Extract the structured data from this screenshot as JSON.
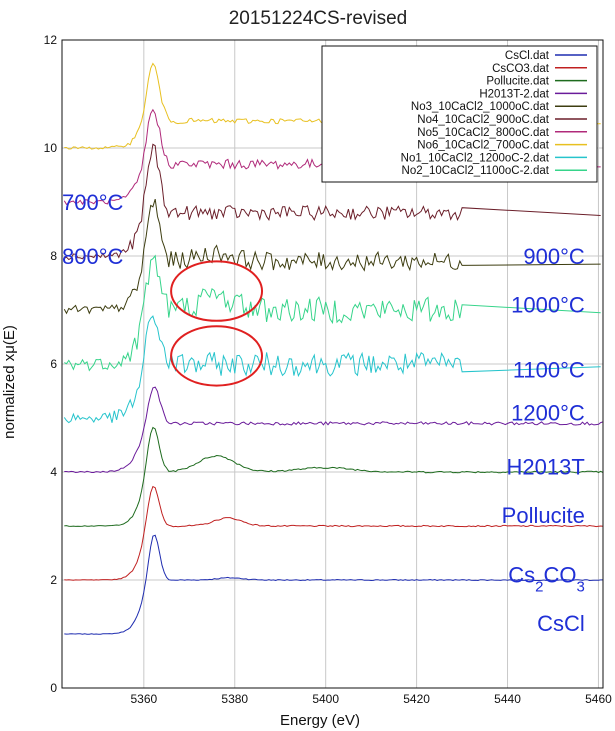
{
  "chart_data": {
    "type": "line",
    "title": "20151224CS-revised",
    "xlabel": "Energy (eV)",
    "ylabel": "normalized xμ(E)",
    "xlim": [
      5342,
      5461
    ],
    "ylim": [
      0,
      12
    ],
    "xticks": [
      5360,
      5380,
      5400,
      5420,
      5440,
      5460
    ],
    "yticks": [
      0,
      2,
      4,
      6,
      8,
      10,
      12
    ],
    "grid": true,
    "legend_position": "top-right",
    "series": [
      {
        "name": "CsCl.dat",
        "color": "#1f2db0",
        "offset": 1.0,
        "shape": "cscl",
        "noise": 0.01,
        "x_end": 5461
      },
      {
        "name": "CsCO3.dat",
        "color": "#c02020",
        "offset": 2.0,
        "shape": "csco3",
        "noise": 0.012,
        "x_end": 5461
      },
      {
        "name": "Pollucite.dat",
        "color": "#1e6b1e",
        "offset": 3.0,
        "shape": "pollucite",
        "noise": 0.015,
        "x_end": 5461
      },
      {
        "name": "H2013T-2.dat",
        "color": "#6a1b9a",
        "offset": 4.0,
        "shape": "h2013",
        "noise": 0.03,
        "x_end": 5461
      },
      {
        "name": "No3_10CaCl2_1000oC.dat",
        "color": "#3d3d10",
        "offset": 7.0,
        "shape": "sample1000",
        "noise": 0.17,
        "x_end": 5430
      },
      {
        "name": "No4_10CaCl2_900oC.dat",
        "color": "#6b1f2a",
        "offset": 8.0,
        "shape": "sample900",
        "noise": 0.13,
        "x_end": 5430
      },
      {
        "name": "No5_10CaCl2_800oC.dat",
        "color": "#b02a7a",
        "offset": 9.0,
        "shape": "sample800",
        "noise": 0.09,
        "x_end": 5430
      },
      {
        "name": "No6_10CaCl2_700oC.dat",
        "color": "#e8c020",
        "offset": 10.0,
        "shape": "sample700",
        "noise": 0.05,
        "x_end": 5430
      },
      {
        "name": "No1_10CaCl2_1200oC-2.dat",
        "color": "#26c4cc",
        "offset": 5.0,
        "shape": "sample1200",
        "noise": 0.22,
        "x_end": 5430
      },
      {
        "name": "No2_10CaCl2_1100oC-2.dat",
        "color": "#36d48a",
        "offset": 6.0,
        "shape": "sample1100",
        "noise": 0.24,
        "x_end": 5430
      }
    ],
    "annotations": [
      {
        "key": "t700",
        "text": "700°C",
        "x": 5342,
        "y": 9.0,
        "anchor": "start"
      },
      {
        "key": "t800",
        "text": "800°C",
        "x": 5342,
        "y": 8.0,
        "anchor": "start"
      },
      {
        "key": "t900",
        "text": "900°C",
        "x": 5457,
        "y": 8.0,
        "anchor": "end"
      },
      {
        "key": "t1000",
        "text": "1000°C",
        "x": 5457,
        "y": 7.1,
        "anchor": "end"
      },
      {
        "key": "t1100",
        "text": "1100°C",
        "x": 5457,
        "y": 5.9,
        "anchor": "end"
      },
      {
        "key": "t1200",
        "text": "1200°C",
        "x": 5457,
        "y": 5.1,
        "anchor": "end"
      },
      {
        "key": "h2013t",
        "text": "H2013T",
        "x": 5457,
        "y": 4.1,
        "anchor": "end"
      },
      {
        "key": "pollucite",
        "text": "Pollucite",
        "x": 5457,
        "y": 3.2,
        "anchor": "end"
      },
      {
        "key": "cs2co3",
        "text": "Cs2CO3",
        "x": 5457,
        "y": 2.1,
        "anchor": "end"
      },
      {
        "key": "cscl",
        "text": "CsCl",
        "x": 5457,
        "y": 1.2,
        "anchor": "end"
      }
    ],
    "highlights": [
      {
        "type": "ellipse",
        "color": "#e02020",
        "cx": 5376,
        "cy": 7.35,
        "rx": 10,
        "ry": 0.55
      },
      {
        "type": "ellipse",
        "color": "#e02020",
        "cx": 5376,
        "cy": 6.15,
        "rx": 10,
        "ry": 0.55
      }
    ]
  }
}
